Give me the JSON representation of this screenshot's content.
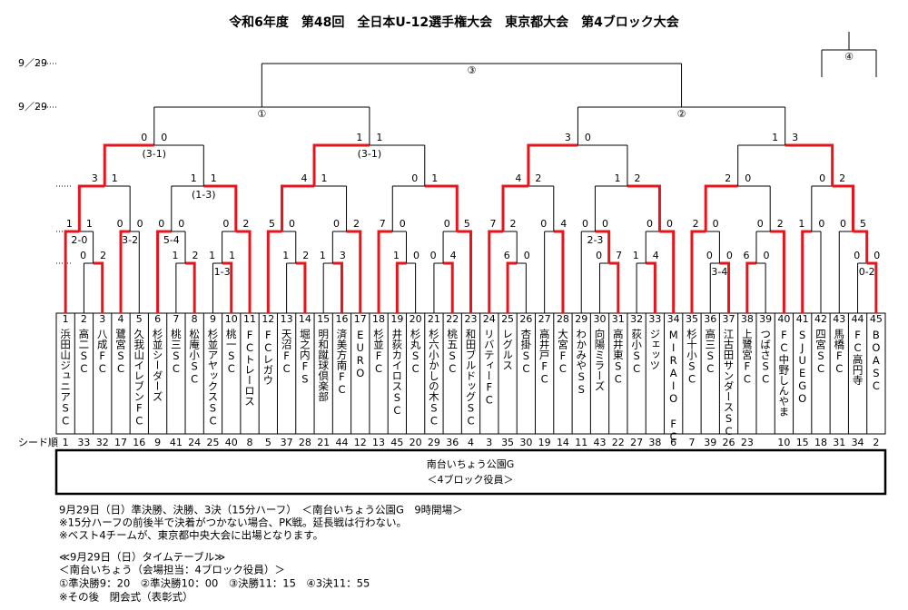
{
  "header": {
    "title": "令和6年度　第48回　全日本U-12選手権大会　東京都大会　第4ブロック大会"
  },
  "dates": [
    "9／29",
    "9／29"
  ],
  "third_place": {
    "label": "④"
  },
  "teams": [
    {
      "number": "1",
      "name": "浜田山ジュニアSC",
      "seed": "1"
    },
    {
      "number": "2",
      "name": "高二SC",
      "seed": "33"
    },
    {
      "number": "3",
      "name": "八成FC",
      "seed": "32"
    },
    {
      "number": "4",
      "name": "鷺宮SC",
      "seed": "17"
    },
    {
      "number": "5",
      "name": "久我山イレブンFC",
      "seed": "16"
    },
    {
      "number": "6",
      "name": "杉並シーダーズ",
      "seed": "9"
    },
    {
      "number": "7",
      "name": "桃三SC",
      "seed": "41"
    },
    {
      "number": "8",
      "name": "松庵小SC",
      "seed": "24"
    },
    {
      "number": "9",
      "name": "杉並アヤックスSC",
      "seed": "25"
    },
    {
      "number": "10",
      "name": "桃一SC",
      "seed": "40"
    },
    {
      "number": "11",
      "name": "FCトレーロス",
      "seed": "8"
    },
    {
      "number": "12",
      "name": "FCレガウ",
      "seed": "5"
    },
    {
      "number": "13",
      "name": "天沼FC",
      "seed": "37"
    },
    {
      "number": "14",
      "name": "堀之内FS",
      "seed": "28"
    },
    {
      "number": "15",
      "name": "明和蹴球倶楽部",
      "seed": "21"
    },
    {
      "number": "16",
      "name": "済美方南FC",
      "seed": "44"
    },
    {
      "number": "17",
      "name": "EURO",
      "seed": "12"
    },
    {
      "number": "18",
      "name": "杉並FC",
      "seed": "13"
    },
    {
      "number": "19",
      "name": "井荻カイロスSC",
      "seed": "45"
    },
    {
      "number": "20",
      "name": "杉丸SC",
      "seed": "20"
    },
    {
      "number": "21",
      "name": "杉六小かしの木SC",
      "seed": "29"
    },
    {
      "number": "22",
      "name": "桃五SC",
      "seed": "36"
    },
    {
      "number": "23",
      "name": "和田ブルドッグSC",
      "seed": "4"
    },
    {
      "number": "24",
      "name": "リバティーFC",
      "seed": "3"
    },
    {
      "number": "25",
      "name": "レグルス",
      "seed": "35"
    },
    {
      "number": "26",
      "name": "杏掛SC",
      "seed": "30"
    },
    {
      "number": "27",
      "name": "高井戸FC",
      "seed": "19"
    },
    {
      "number": "28",
      "name": "大宮FC",
      "seed": "14"
    },
    {
      "number": "29",
      "name": "わかみやSS",
      "seed": "11"
    },
    {
      "number": "30",
      "name": "向陽ミラーズ",
      "seed": "43"
    },
    {
      "number": "31",
      "name": "高井東SC",
      "seed": "22"
    },
    {
      "number": "32",
      "name": "荻小SC",
      "seed": "27"
    },
    {
      "number": "33",
      "name": "ジェッツ",
      "seed": "38"
    },
    {
      "number": "34",
      "name": "MIRAIO FC",
      "seed": "6"
    },
    {
      "number": "35",
      "name": "杉十小SC",
      "seed": "7"
    },
    {
      "number": "36",
      "name": "高三SC",
      "seed": "39"
    },
    {
      "number": "37",
      "name": "江古田サンダースSC",
      "seed": "26"
    },
    {
      "number": "38",
      "name": "上鷺宮FC",
      "seed": "23"
    },
    {
      "number": "39",
      "name": "つばさSC",
      "seed": null
    },
    {
      "number": "40",
      "name": "FC中野しんやま",
      "seed": "10"
    },
    {
      "number": "41",
      "name": "SJUEGO",
      "seed": "15"
    },
    {
      "number": "42",
      "name": "四宮SC",
      "seed": "18"
    },
    {
      "number": "43",
      "name": "馬橋FC",
      "seed": "31"
    },
    {
      "number": "44",
      "name": "FC高円寺",
      "seed": "34"
    },
    {
      "number": "45",
      "name": "BOASC",
      "seed": "2"
    }
  ],
  "seed_label": "シード順",
  "bracket": {
    "label": "③",
    "children": [
      {
        "label": "①",
        "children": [
          {
            "score": [
              0,
              0
            ],
            "pk": "(3-1)",
            "children": [
              {
                "score": [
                  3,
                  1
                ],
                "children": [
                  {
                    "score": [
                      1,
                      1
                    ],
                    "pk": "2-0",
                    "children": [
                      1,
                      {
                        "score": [
                          0,
                          2
                        ],
                        "children": [
                          2,
                          3
                        ]
                      }
                    ]
                  },
                  {
                    "score": [
                      0,
                      0
                    ],
                    "pk": "3-2",
                    "children": [
                      4,
                      5
                    ]
                  }
                ]
              },
              {
                "score": [
                  1,
                  1
                ],
                "pk": "(1-3)",
                "children": [
                  {
                    "score": [
                      0,
                      0
                    ],
                    "pk": "5-4",
                    "children": [
                      6,
                      {
                        "score": [
                          1,
                          2
                        ],
                        "children": [
                          7,
                          8
                        ]
                      }
                    ]
                  },
                  {
                    "score": [
                      0,
                      2
                    ],
                    "children": [
                      {
                        "score": [
                          1,
                          1
                        ],
                        "pk": "1-3",
                        "children": [
                          9,
                          10
                        ]
                      },
                      11
                    ]
                  }
                ]
              }
            ]
          },
          {
            "score": [
              1,
              1
            ],
            "pk": "(3-1)",
            "children": [
              {
                "score": [
                  4,
                  1
                ],
                "children": [
                  {
                    "score": [
                      5,
                      0
                    ],
                    "children": [
                      12,
                      {
                        "score": [
                          1,
                          2
                        ],
                        "children": [
                          13,
                          14
                        ]
                      }
                    ]
                  },
                  {
                    "score": [
                      0,
                      2
                    ],
                    "children": [
                      {
                        "score": [
                          1,
                          3
                        ],
                        "children": [
                          15,
                          16
                        ]
                      },
                      17
                    ]
                  }
                ]
              },
              {
                "score": [
                  0,
                  1
                ],
                "children": [
                  {
                    "score": [
                      7,
                      0
                    ],
                    "children": [
                      18,
                      {
                        "score": [
                          1,
                          0
                        ],
                        "children": [
                          19,
                          20
                        ]
                      }
                    ]
                  },
                  {
                    "score": [
                      0,
                      5
                    ],
                    "children": [
                      {
                        "score": [
                          0,
                          4
                        ],
                        "children": [
                          21,
                          22
                        ]
                      },
                      23
                    ]
                  }
                ]
              }
            ]
          }
        ]
      },
      {
        "label": "②",
        "children": [
          {
            "score": [
              3,
              0
            ],
            "children": [
              {
                "score": [
                  4,
                  2
                ],
                "children": [
                  {
                    "score": [
                      7,
                      2
                    ],
                    "children": [
                      24,
                      {
                        "score": [
                          6,
                          0
                        ],
                        "children": [
                          25,
                          26
                        ]
                      }
                    ]
                  },
                  {
                    "score": [
                      0,
                      4
                    ],
                    "children": [
                      27,
                      28
                    ]
                  }
                ]
              },
              {
                "score": [
                  1,
                  2
                ],
                "children": [
                  {
                    "score": [
                      0,
                      0
                    ],
                    "pk": "2-3",
                    "children": [
                      29,
                      {
                        "score": [
                          0,
                          7
                        ],
                        "children": [
                          30,
                          31
                        ]
                      }
                    ]
                  },
                  {
                    "score": [
                      0,
                      0
                    ],
                    "winner": 1,
                    "children": [
                      {
                        "score": [
                          1,
                          4
                        ],
                        "children": [
                          32,
                          33
                        ]
                      },
                      34
                    ]
                  }
                ]
              }
            ]
          },
          {
            "score": [
              1,
              3
            ],
            "children": [
              {
                "score": [
                  2,
                  0
                ],
                "children": [
                  {
                    "score": [
                      2,
                      0
                    ],
                    "children": [
                      35,
                      {
                        "score": [
                          0,
                          0
                        ],
                        "pk": "3-4",
                        "children": [
                          36,
                          37
                        ]
                      }
                    ]
                  },
                  {
                    "score": [
                      0,
                      2
                    ],
                    "children": [
                      {
                        "score": [
                          6,
                          0
                        ],
                        "children": [
                          38,
                          39
                        ]
                      },
                      40
                    ]
                  }
                ]
              },
              {
                "score": [
                  0,
                  2
                ],
                "children": [
                  {
                    "score": [
                      1,
                      0
                    ],
                    "children": [
                      41,
                      42
                    ]
                  },
                  {
                    "score": [
                      0,
                      5
                    ],
                    "children": [
                      43,
                      {
                        "score": [
                          0,
                          0
                        ],
                        "pk": "0-2",
                        "children": [
                          44,
                          45
                        ]
                      }
                    ]
                  }
                ]
              }
            ]
          }
        ]
      }
    ]
  },
  "venue": {
    "name": "南台いちょう公園G",
    "staff": "＜4ブロック役員＞"
  },
  "notes": [
    "9月29日（日）準決勝、決勝、3決（15分ハーフ）　＜南台いちょう公園G　9時開場＞",
    "※15分ハーフの前後半で決着がつかない場合、PK戦。延長戦は行わない。",
    "※ベスト4チームが、東京都中央大会に出場となります。",
    "≪9月29日（日）タイムテーブル≫",
    "＜南台いちょう（会場担当：4ブロック役員）＞",
    "①準決勝9：20　②準決勝10：00　③決勝11：15　④3決11：55",
    "※その後　閉会式（表彰式）"
  ]
}
